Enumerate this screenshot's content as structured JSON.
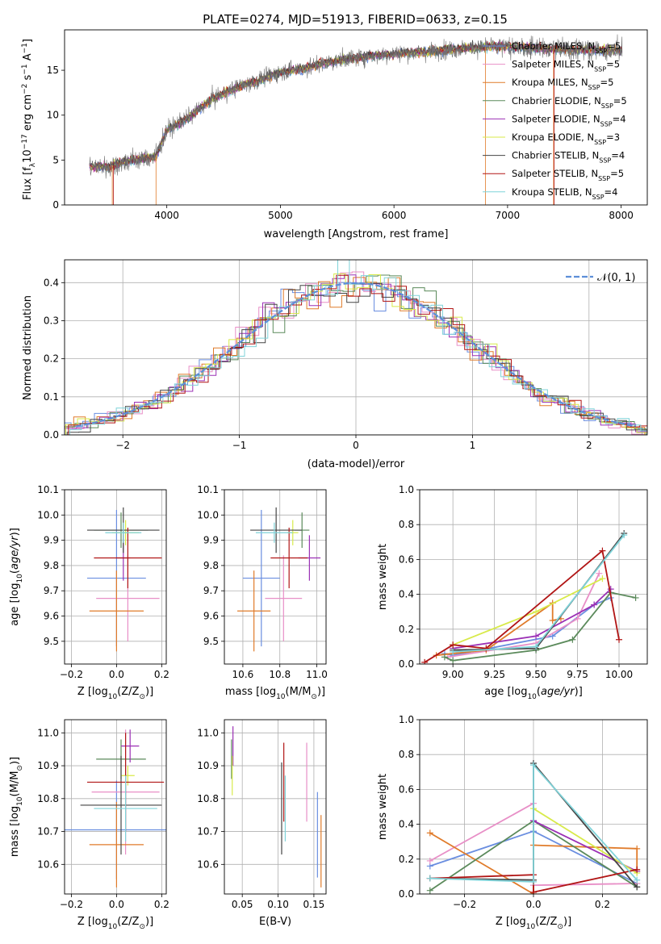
{
  "figure_title": "PLATE=0274, MJD=51913, FIBERID=0633, z=0.15",
  "colors": {
    "chabrier_miles": "#6a8ee0",
    "salpeter_miles": "#e88fc7",
    "kroupa_miles": "#e07b2a",
    "chabrier_elodie": "#5b8a5b",
    "salpeter_elodie": "#9b30b5",
    "kroupa_elodie": "#d8ea4a",
    "chabrier_stelib": "#454545",
    "salpeter_stelib": "#b11515",
    "kroupa_stelib": "#7fd3d9",
    "gauss": "#5d8fd8",
    "data": "#707070"
  },
  "chart_data": [
    {
      "id": "spectrum",
      "type": "line",
      "xlabel": "wavelength [Angstrom, rest frame]",
      "ylabel": "Flux [f",
      "xlim": [
        3100,
        8230
      ],
      "ylim": [
        0,
        19.5
      ],
      "xticks": [
        4000,
        5000,
        6000,
        7000,
        8000
      ],
      "yticks": [
        0,
        5,
        10,
        15
      ],
      "grid": false,
      "legend_loc": "upper-right",
      "legend": [
        {
          "key": "chabrier_miles",
          "label": "Chabrier MILES, N",
          "n": "5"
        },
        {
          "key": "salpeter_miles",
          "label": "Salpeter MILES, N",
          "n": "5"
        },
        {
          "key": "kroupa_miles",
          "label": "Kroupa MILES, N",
          "n": "5"
        },
        {
          "key": "chabrier_elodie",
          "label": "Chabrier ELODIE, N",
          "n": "5"
        },
        {
          "key": "salpeter_elodie",
          "label": "Salpeter ELODIE, N",
          "n": "4"
        },
        {
          "key": "kroupa_elodie",
          "label": "Kroupa ELODIE, N",
          "n": "3"
        },
        {
          "key": "chabrier_stelib",
          "label": "Chabrier STELIB, N",
          "n": "4"
        },
        {
          "key": "salpeter_stelib",
          "label": "Salpeter STELIB, N",
          "n": "5"
        },
        {
          "key": "kroupa_stelib",
          "label": "Kroupa STELIB, N",
          "n": "4"
        }
      ],
      "continuum": [
        [
          3300,
          4.2
        ],
        [
          3500,
          4.3
        ],
        [
          3700,
          5.0
        ],
        [
          3900,
          5.3
        ],
        [
          4000,
          8.3
        ],
        [
          4200,
          9.8
        ],
        [
          4400,
          11.8
        ],
        [
          4600,
          13.0
        ],
        [
          4800,
          13.8
        ],
        [
          5000,
          14.8
        ],
        [
          5200,
          15.2
        ],
        [
          5400,
          15.8
        ],
        [
          5600,
          16.3
        ],
        [
          5800,
          16.6
        ],
        [
          6000,
          16.8
        ],
        [
          6200,
          17.0
        ],
        [
          6400,
          17.2
        ],
        [
          6600,
          17.4
        ],
        [
          6800,
          17.6
        ],
        [
          7000,
          17.6
        ],
        [
          7200,
          17.5
        ],
        [
          7400,
          17.4
        ],
        [
          7600,
          17.3
        ],
        [
          8000,
          17.2
        ]
      ]
    },
    {
      "id": "residuals",
      "type": "bar",
      "xlabel": "(data-model)/error",
      "ylabel": "Normed distribution",
      "xlim": [
        -2.5,
        2.5
      ],
      "ylim": [
        0,
        0.46
      ],
      "xticks": [
        -2,
        -1,
        0,
        1,
        2
      ],
      "yticks": [
        0.0,
        0.1,
        0.2,
        0.3,
        0.4
      ],
      "grid": true,
      "legend_loc": "upper-right",
      "legend_label": "𝒩(0, 1)",
      "bin_width": 0.1
    },
    {
      "id": "age-vs-Z",
      "type": "scatter",
      "xlabel": "Z [log",
      "ylabel": "age  [log",
      "xlim": [
        -0.23,
        0.22
      ],
      "ylim": [
        9.41,
        10.1
      ],
      "xticks": [
        -0.2,
        0.0,
        0.2
      ],
      "yticks": [
        9.5,
        9.6,
        9.7,
        9.8,
        9.9,
        10.0,
        10.1
      ],
      "grid": true,
      "points": [
        {
          "key": "chabrier_miles",
          "x": 0.0,
          "y": 9.75,
          "xerr": 0.13,
          "yerr": 0.27
        },
        {
          "key": "salpeter_miles",
          "x": 0.05,
          "y": 9.67,
          "xerr": 0.14,
          "yerr": 0.17
        },
        {
          "key": "kroupa_miles",
          "x": 0.0,
          "y": 9.62,
          "xerr": 0.12,
          "yerr": 0.16
        },
        {
          "key": "chabrier_elodie",
          "x": 0.02,
          "y": 9.94,
          "xerr": 0.12,
          "yerr": 0.07
        },
        {
          "key": "salpeter_elodie",
          "x": 0.03,
          "y": 9.83,
          "xerr": 0.03,
          "yerr": 0.09
        },
        {
          "key": "kroupa_elodie",
          "x": 0.04,
          "y": 9.93,
          "xerr": 0.06,
          "yerr": 0.05
        },
        {
          "key": "chabrier_stelib",
          "x": 0.03,
          "y": 9.94,
          "xerr": 0.16,
          "yerr": 0.09
        },
        {
          "key": "salpeter_stelib",
          "x": 0.05,
          "y": 9.83,
          "xerr": 0.15,
          "yerr": 0.12
        },
        {
          "key": "kroupa_stelib",
          "x": 0.03,
          "y": 9.93,
          "xerr": 0.08,
          "yerr": 0.04
        }
      ]
    },
    {
      "id": "age-vs-mass",
      "type": "scatter",
      "xlabel": "mass [log",
      "ylabel": "",
      "xlim": [
        10.5,
        11.05
      ],
      "ylim": [
        9.41,
        10.1
      ],
      "xticks": [
        10.6,
        10.8,
        11.0
      ],
      "yticks": [
        9.5,
        9.6,
        9.7,
        9.8,
        9.9,
        10.0,
        10.1
      ],
      "grid": true,
      "points": [
        {
          "key": "chabrier_miles",
          "x": 10.7,
          "y": 9.75,
          "xerr": 0.1,
          "yerr": 0.27
        },
        {
          "key": "salpeter_miles",
          "x": 10.82,
          "y": 9.67,
          "xerr": 0.1,
          "yerr": 0.17
        },
        {
          "key": "kroupa_miles",
          "x": 10.66,
          "y": 9.62,
          "xerr": 0.09,
          "yerr": 0.16
        },
        {
          "key": "chabrier_elodie",
          "x": 10.92,
          "y": 9.94,
          "xerr": 0.04,
          "yerr": 0.07
        },
        {
          "key": "salpeter_elodie",
          "x": 10.96,
          "y": 9.83,
          "xerr": 0.06,
          "yerr": 0.09
        },
        {
          "key": "kroupa_elodie",
          "x": 10.87,
          "y": 9.93,
          "xerr": 0.03,
          "yerr": 0.05
        },
        {
          "key": "chabrier_stelib",
          "x": 10.78,
          "y": 9.94,
          "xerr": 0.14,
          "yerr": 0.09
        },
        {
          "key": "salpeter_stelib",
          "x": 10.85,
          "y": 9.83,
          "xerr": 0.1,
          "yerr": 0.12
        },
        {
          "key": "kroupa_stelib",
          "x": 10.77,
          "y": 9.93,
          "xerr": 0.1,
          "yerr": 0.04
        }
      ]
    },
    {
      "id": "mass-weight-vs-age",
      "type": "line",
      "xlabel": "age  [log",
      "ylabel": "mass weight",
      "xlim": [
        8.8,
        10.17
      ],
      "ylim": [
        0,
        1.0
      ],
      "xticks": [
        9.0,
        9.25,
        9.5,
        9.75,
        10.0
      ],
      "yticks": [
        0.0,
        0.2,
        0.4,
        0.6,
        0.8,
        1.0
      ],
      "grid": true,
      "series": [
        {
          "key": "chabrier_miles",
          "points": [
            [
              8.95,
              0.06
            ],
            [
              9.0,
              0.05
            ],
            [
              9.6,
              0.16
            ],
            [
              9.85,
              0.34
            ],
            [
              9.95,
              0.38
            ]
          ]
        },
        {
          "key": "salpeter_miles",
          "points": [
            [
              8.97,
              0.04
            ],
            [
              9.5,
              0.12
            ],
            [
              9.75,
              0.26
            ],
            [
              9.88,
              0.52
            ]
          ]
        },
        {
          "key": "kroupa_miles",
          "points": [
            [
              8.9,
              0.05
            ],
            [
              9.2,
              0.08
            ],
            [
              9.6,
              0.35
            ],
            [
              9.6,
              0.25
            ],
            [
              9.65,
              0.26
            ]
          ]
        },
        {
          "key": "chabrier_elodie",
          "points": [
            [
              8.95,
              0.04
            ],
            [
              9.0,
              0.02
            ],
            [
              9.5,
              0.08
            ],
            [
              9.72,
              0.14
            ],
            [
              9.95,
              0.41
            ],
            [
              10.1,
              0.38
            ]
          ]
        },
        {
          "key": "salpeter_elodie",
          "points": [
            [
              9.0,
              0.09
            ],
            [
              9.5,
              0.16
            ],
            [
              9.85,
              0.34
            ],
            [
              9.95,
              0.43
            ]
          ]
        },
        {
          "key": "kroupa_elodie",
          "points": [
            [
              9.0,
              0.11
            ],
            [
              9.5,
              0.3
            ],
            [
              9.9,
              0.49
            ]
          ]
        },
        {
          "key": "chabrier_stelib",
          "points": [
            [
              9.0,
              0.08
            ],
            [
              9.5,
              0.09
            ],
            [
              10.03,
              0.75
            ]
          ]
        },
        {
          "key": "salpeter_stelib",
          "points": [
            [
              8.83,
              0.01
            ],
            [
              9.0,
              0.11
            ],
            [
              9.2,
              0.09
            ],
            [
              9.9,
              0.65
            ],
            [
              10.0,
              0.14
            ]
          ]
        },
        {
          "key": "kroupa_stelib",
          "points": [
            [
              9.0,
              0.07
            ],
            [
              9.5,
              0.1
            ],
            [
              10.03,
              0.74
            ]
          ]
        }
      ]
    },
    {
      "id": "mass-vs-Z",
      "type": "scatter",
      "xlabel": "Z [log",
      "ylabel": "mass [log",
      "xlim": [
        -0.23,
        0.22
      ],
      "ylim": [
        10.51,
        11.04
      ],
      "xticks": [
        -0.2,
        0.0,
        0.2
      ],
      "yticks": [
        10.6,
        10.7,
        10.8,
        10.9,
        11.0
      ],
      "grid": true,
      "points": [
        {
          "key": "chabrier_miles",
          "x": 0.0,
          "y": 10.705,
          "xerr": 0.28,
          "yerr": 0.15
        },
        {
          "key": "salpeter_miles",
          "x": 0.04,
          "y": 10.82,
          "xerr": 0.15,
          "yerr": 0.19
        },
        {
          "key": "kroupa_miles",
          "x": 0.0,
          "y": 10.66,
          "xerr": 0.12,
          "yerr": 0.13
        },
        {
          "key": "chabrier_elodie",
          "x": 0.02,
          "y": 10.92,
          "xerr": 0.11,
          "yerr": 0.06
        },
        {
          "key": "salpeter_elodie",
          "x": 0.06,
          "y": 10.96,
          "xerr": 0.04,
          "yerr": 0.05
        },
        {
          "key": "kroupa_elodie",
          "x": 0.05,
          "y": 10.87,
          "xerr": 0.03,
          "yerr": 0.03
        },
        {
          "key": "chabrier_stelib",
          "x": 0.02,
          "y": 10.78,
          "xerr": 0.18,
          "yerr": 0.15
        },
        {
          "key": "salpeter_stelib",
          "x": 0.04,
          "y": 10.85,
          "xerr": 0.17,
          "yerr": 0.15
        },
        {
          "key": "kroupa_stelib",
          "x": 0.04,
          "y": 10.77,
          "xerr": 0.14,
          "yerr": 0.1
        }
      ]
    },
    {
      "id": "mass-vs-ebv",
      "type": "scatter",
      "xlabel": "E(B-V)",
      "ylabel": "",
      "xlim": [
        0.025,
        0.167
      ],
      "ylim": [
        10.51,
        11.04
      ],
      "xticks": [
        0.05,
        0.1,
        0.15
      ],
      "yticks": [
        10.6,
        10.7,
        10.8,
        10.9,
        11.0
      ],
      "grid": true,
      "points": [
        {
          "key": "chabrier_miles",
          "x": 0.155,
          "y": 10.69,
          "xerr": 0,
          "yerr": 0.13
        },
        {
          "key": "salpeter_miles",
          "x": 0.14,
          "y": 10.85,
          "xerr": 0,
          "yerr": 0.12
        },
        {
          "key": "kroupa_miles",
          "x": 0.16,
          "y": 10.64,
          "xerr": 0,
          "yerr": 0.11
        },
        {
          "key": "chabrier_elodie",
          "x": 0.035,
          "y": 10.92,
          "xerr": 0,
          "yerr": 0.06
        },
        {
          "key": "salpeter_elodie",
          "x": 0.037,
          "y": 10.96,
          "xerr": 0,
          "yerr": 0.06
        },
        {
          "key": "kroupa_elodie",
          "x": 0.036,
          "y": 10.87,
          "xerr": 0,
          "yerr": 0.06
        },
        {
          "key": "chabrier_stelib",
          "x": 0.105,
          "y": 10.77,
          "xerr": 0,
          "yerr": 0.14
        },
        {
          "key": "salpeter_stelib",
          "x": 0.108,
          "y": 10.85,
          "xerr": 0,
          "yerr": 0.12
        },
        {
          "key": "kroupa_stelib",
          "x": 0.11,
          "y": 10.77,
          "xerr": 0,
          "yerr": 0.1
        }
      ]
    },
    {
      "id": "mass-weight-vs-Z",
      "type": "line",
      "xlabel": "Z [log",
      "ylabel": "mass weight",
      "xlim": [
        -0.33,
        0.33
      ],
      "ylim": [
        0,
        1.0
      ],
      "xticks": [
        -0.2,
        0.0,
        0.2
      ],
      "yticks": [
        0.0,
        0.2,
        0.4,
        0.6,
        0.8,
        1.0
      ],
      "grid": true,
      "series": [
        {
          "key": "chabrier_miles",
          "points": [
            [
              -0.3,
              0.16
            ],
            [
              0.0,
              0.36
            ],
            [
              0.3,
              0.06
            ]
          ]
        },
        {
          "key": "salpeter_miles",
          "points": [
            [
              -0.3,
              0.19
            ],
            [
              0.0,
              0.52
            ],
            [
              0.0,
              0.05
            ],
            [
              0.3,
              0.06
            ]
          ]
        },
        {
          "key": "kroupa_miles",
          "points": [
            [
              -0.3,
              0.35
            ],
            [
              0.0,
              0.0
            ],
            [
              0.0,
              0.28
            ],
            [
              0.3,
              0.26
            ],
            [
              0.3,
              0.13
            ]
          ]
        },
        {
          "key": "chabrier_elodie",
          "points": [
            [
              -0.3,
              0.02
            ],
            [
              0.0,
              0.42
            ],
            [
              0.3,
              0.04
            ]
          ]
        },
        {
          "key": "salpeter_elodie",
          "points": [
            [
              0.0,
              0.42
            ],
            [
              0.3,
              0.13
            ]
          ]
        },
        {
          "key": "kroupa_elodie",
          "points": [
            [
              0.0,
              0.49
            ],
            [
              0.3,
              0.12
            ]
          ]
        },
        {
          "key": "chabrier_stelib",
          "points": [
            [
              -0.3,
              0.09
            ],
            [
              0.0,
              0.08
            ],
            [
              0.0,
              0.75
            ],
            [
              0.3,
              0.04
            ]
          ]
        },
        {
          "key": "salpeter_stelib",
          "points": [
            [
              -0.3,
              0.09
            ],
            [
              0.0,
              0.11
            ],
            [
              0.0,
              0.01
            ],
            [
              0.3,
              0.14
            ]
          ]
        },
        {
          "key": "kroupa_stelib",
          "points": [
            [
              -0.3,
              0.09
            ],
            [
              0.0,
              0.07
            ],
            [
              0.0,
              0.74
            ],
            [
              0.3,
              0.08
            ]
          ]
        }
      ]
    }
  ]
}
